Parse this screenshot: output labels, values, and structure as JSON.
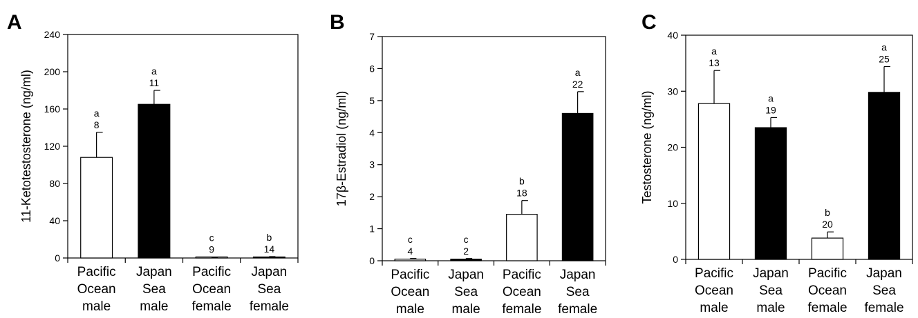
{
  "chart_data": [
    {
      "type": "bar",
      "panel": "A",
      "title": "",
      "xlabel": "",
      "ylabel": "11-Ketotestosterone (ng/ml)",
      "ylim": [
        0,
        240
      ],
      "yticks": [
        "0",
        "40",
        "80",
        "120",
        "160",
        "200",
        "240"
      ],
      "categories": [
        [
          "Pacific",
          "Ocean",
          "male"
        ],
        [
          "Japan",
          "Sea",
          "male"
        ],
        [
          "Pacific",
          "Ocean",
          "female"
        ],
        [
          "Japan",
          "Sea",
          "female"
        ]
      ],
      "values": [
        108,
        165,
        0.5,
        1
      ],
      "errors": [
        27,
        15,
        0.3,
        0.5
      ],
      "fills": [
        "white",
        "black",
        "white",
        "black"
      ],
      "letters": [
        "a",
        "a",
        "c",
        "b"
      ],
      "n": [
        "8",
        "11",
        "9",
        "14"
      ]
    },
    {
      "type": "bar",
      "panel": "B",
      "title": "",
      "xlabel": "",
      "ylabel": "17β-Estradiol (ng/ml)",
      "ylim": [
        0,
        7
      ],
      "yticks": [
        "0",
        "1",
        "2",
        "3",
        "4",
        "5",
        "6",
        "7"
      ],
      "categories": [
        [
          "Pacific",
          "Ocean",
          "male"
        ],
        [
          "Japan",
          "Sea",
          "male"
        ],
        [
          "Pacific",
          "Ocean",
          "female"
        ],
        [
          "Japan",
          "Sea",
          "female"
        ]
      ],
      "values": [
        0.05,
        0.05,
        1.45,
        4.6
      ],
      "errors": [
        0.02,
        0.02,
        0.43,
        0.68
      ],
      "fills": [
        "white",
        "black",
        "white",
        "black"
      ],
      "letters": [
        "c",
        "c",
        "b",
        "a"
      ],
      "n": [
        "4",
        "2",
        "18",
        "22"
      ]
    },
    {
      "type": "bar",
      "panel": "C",
      "title": "",
      "xlabel": "",
      "ylabel": "Testosterone (ng/ml)",
      "ylim": [
        0,
        40
      ],
      "yticks": [
        "0",
        "10",
        "20",
        "30",
        "40"
      ],
      "categories": [
        [
          "Pacific",
          "Ocean",
          "male"
        ],
        [
          "Japan",
          "Sea",
          "male"
        ],
        [
          "Pacific",
          "Ocean",
          "female"
        ],
        [
          "Japan",
          "Sea",
          "female"
        ]
      ],
      "values": [
        27.8,
        23.5,
        3.8,
        29.8
      ],
      "errors": [
        5.9,
        1.8,
        1.1,
        4.6
      ],
      "fills": [
        "white",
        "black",
        "white",
        "black"
      ],
      "letters": [
        "a",
        "a",
        "b",
        "a"
      ],
      "n": [
        "13",
        "19",
        "20",
        "25"
      ]
    }
  ]
}
